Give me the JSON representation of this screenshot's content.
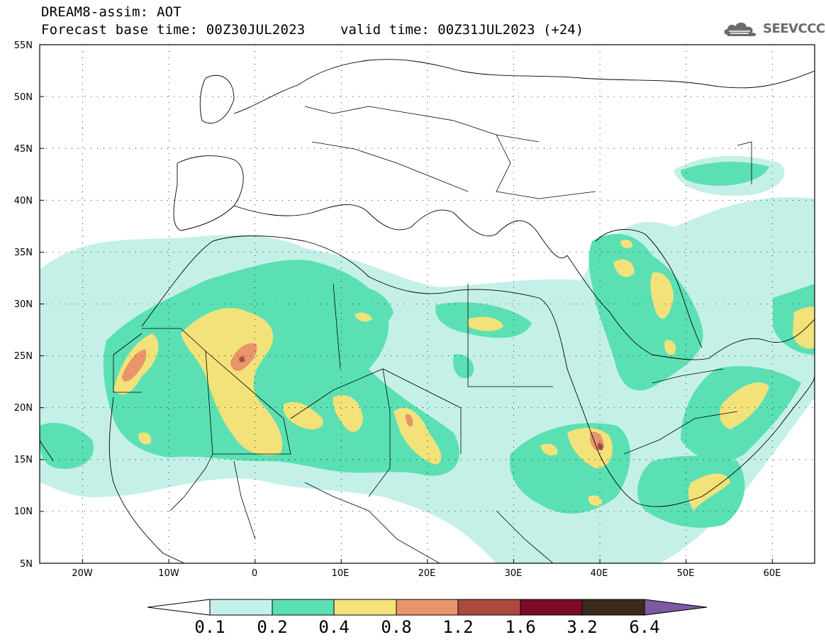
{
  "header": {
    "title_line1": "DREAM8-assim: AOT",
    "title_line2": "Forecast base time: 00Z30JUL2023",
    "valid_time": "valid time: 00Z31JUL2023 (+24)",
    "logo_text": "SEEVCCC"
  },
  "map": {
    "lon_labels": [
      "20W",
      "10W",
      "0",
      "10E",
      "20E",
      "30E",
      "40E",
      "50E",
      "60E"
    ],
    "lat_labels": [
      "55N",
      "50N",
      "45N",
      "40N",
      "35N",
      "30N",
      "25N",
      "20N",
      "15N",
      "10N",
      "5N"
    ]
  },
  "colorbar": {
    "labels": [
      "0.1",
      "0.2",
      "0.4",
      "0.8",
      "1.2",
      "1.6",
      "3.2",
      "6.4"
    ],
    "colors": [
      "#c4f0e8",
      "#5be0b3",
      "#f3e27a",
      "#e9956b",
      "#a94a3d",
      "#7c0a2a",
      "#3b2a1a",
      "#7a5aa0"
    ]
  }
}
